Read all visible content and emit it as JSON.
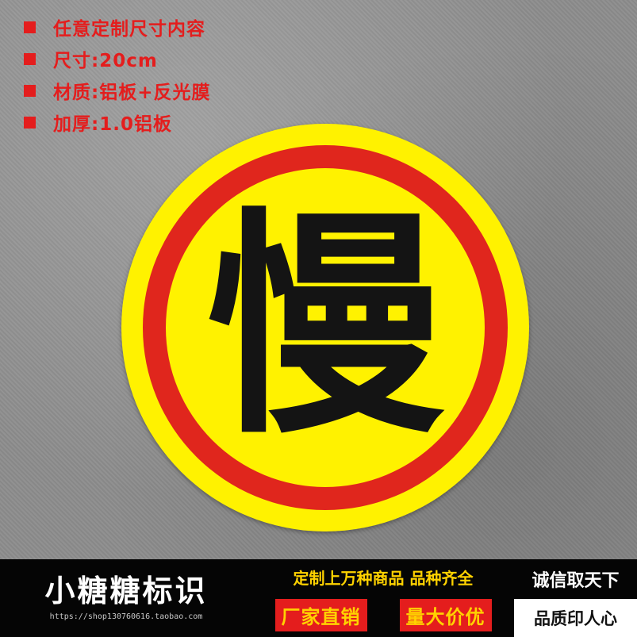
{
  "specs": [
    {
      "text": "任意定制尺寸内容"
    },
    {
      "text": "尺寸:20cm"
    },
    {
      "text": "材质:铝板+反光膜"
    },
    {
      "text": "加厚:1.0铝板"
    }
  ],
  "sign": {
    "character": "慢",
    "colors": {
      "outer": "#fff200",
      "ring": "#e0261d",
      "inner": "#fff200",
      "text": "#141414"
    }
  },
  "banner": {
    "store_name": "小糖糖标识",
    "store_url": "https://shop130760616.taobao.com",
    "tagline_top": "定制上万种商品 品种齐全",
    "pill_left": "厂家直销",
    "pill_right": "量大价优",
    "right_top": "诚信取天下",
    "right_bottom": "品质印人心"
  },
  "colors": {
    "accent_red": "#e41d1d",
    "accent_yellow": "#ffd200"
  }
}
